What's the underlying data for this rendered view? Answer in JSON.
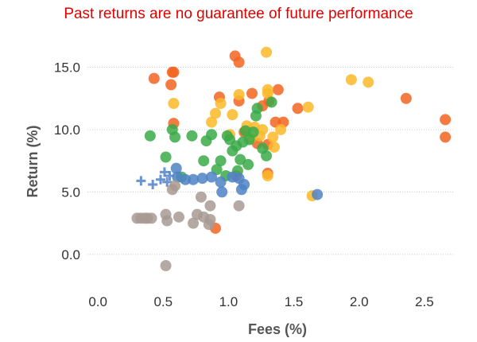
{
  "chart_data": {
    "type": "scatter",
    "title": "Past returns are no guarantee of future performance",
    "title_color": "#e00000",
    "xlabel": "Fees (%)",
    "ylabel": "Return (%)",
    "xlim": [
      -0.08,
      2.72
    ],
    "ylim": [
      -1.6,
      17.2
    ],
    "x_ticks": [
      "0.0",
      "0.5",
      "1.0",
      "1.5",
      "2.0",
      "2.5"
    ],
    "x_tick_values": [
      0.0,
      0.5,
      1.0,
      1.5,
      2.0,
      2.5
    ],
    "y_ticks": [
      "0.0",
      "5.0",
      "10.0",
      "15.0"
    ],
    "y_tick_values": [
      0.0,
      5.0,
      10.0,
      15.0
    ],
    "grid": "horizontal dotted",
    "legend": "none",
    "series": [
      {
        "color": "#f26522",
        "marker": "circle",
        "points": [
          [
            0.43,
            14.1
          ],
          [
            0.58,
            14.6
          ],
          [
            0.57,
            14.6
          ],
          [
            0.56,
            13.6
          ],
          [
            0.58,
            10.5
          ],
          [
            0.93,
            12.6
          ],
          [
            1.05,
            15.9
          ],
          [
            1.08,
            15.4
          ],
          [
            1.12,
            9.8
          ],
          [
            1.08,
            12.3
          ],
          [
            1.18,
            12.9
          ],
          [
            1.26,
            11.9
          ],
          [
            1.31,
            12.3
          ],
          [
            1.38,
            13.2
          ],
          [
            1.36,
            10.6
          ],
          [
            1.42,
            10.6
          ],
          [
            1.53,
            11.7
          ],
          [
            1.06,
            6.3
          ],
          [
            1.3,
            6.5
          ],
          [
            0.9,
            2.1
          ],
          [
            2.36,
            12.5
          ],
          [
            2.66,
            10.8
          ],
          [
            2.66,
            9.4
          ],
          [
            1.22,
            8.9
          ],
          [
            1.3,
            8.8
          ]
        ]
      },
      {
        "color": "#fbb829",
        "marker": "circle",
        "points": [
          [
            0.58,
            12.1
          ],
          [
            0.87,
            10.6
          ],
          [
            0.9,
            11.3
          ],
          [
            0.94,
            12.1
          ],
          [
            1.03,
            11.2
          ],
          [
            1.08,
            12.8
          ],
          [
            1.14,
            10.3
          ],
          [
            1.17,
            9.3
          ],
          [
            1.2,
            10.2
          ],
          [
            1.24,
            9.5
          ],
          [
            1.26,
            10.0
          ],
          [
            1.3,
            12.9
          ],
          [
            1.3,
            13.2
          ],
          [
            1.29,
            16.2
          ],
          [
            1.34,
            9.4
          ],
          [
            1.35,
            8.6
          ],
          [
            1.4,
            10.0
          ],
          [
            1.61,
            11.8
          ],
          [
            1.64,
            4.7
          ],
          [
            1.94,
            14.0
          ],
          [
            2.07,
            13.8
          ],
          [
            1.3,
            6.3
          ],
          [
            1.01,
            9.6
          ]
        ]
      },
      {
        "color": "#3aaa48",
        "marker": "circle",
        "points": [
          [
            0.4,
            9.5
          ],
          [
            0.52,
            7.8
          ],
          [
            0.57,
            10.0
          ],
          [
            0.59,
            9.4
          ],
          [
            0.64,
            6.2
          ],
          [
            0.72,
            9.5
          ],
          [
            0.81,
            7.5
          ],
          [
            0.83,
            9.1
          ],
          [
            0.87,
            9.6
          ],
          [
            0.91,
            6.8
          ],
          [
            0.94,
            7.5
          ],
          [
            0.99,
            9.5
          ],
          [
            1.01,
            9.2
          ],
          [
            1.03,
            8.3
          ],
          [
            1.06,
            8.7
          ],
          [
            1.09,
            7.6
          ],
          [
            1.11,
            9.0
          ],
          [
            1.13,
            9.9
          ],
          [
            1.16,
            9.2
          ],
          [
            1.19,
            9.8
          ],
          [
            1.21,
            11.1
          ],
          [
            1.22,
            11.7
          ],
          [
            1.26,
            8.5
          ],
          [
            1.29,
            7.9
          ],
          [
            1.33,
            12.2
          ],
          [
            1.07,
            6.7
          ],
          [
            1.15,
            7.2
          ],
          [
            0.98,
            6.3
          ]
        ]
      },
      {
        "color": "#4f82c7",
        "marker": "circle",
        "points": [
          [
            0.6,
            6.9
          ],
          [
            0.61,
            6.2
          ],
          [
            0.67,
            6.0
          ],
          [
            0.73,
            6.0
          ],
          [
            0.8,
            6.1
          ],
          [
            0.87,
            6.2
          ],
          [
            0.94,
            5.8
          ],
          [
            0.95,
            5.0
          ],
          [
            1.03,
            6.2
          ],
          [
            1.08,
            6.1
          ],
          [
            1.1,
            5.2
          ],
          [
            1.12,
            5.6
          ],
          [
            1.68,
            4.8
          ]
        ]
      },
      {
        "color": "#4f82c7",
        "marker": "plus",
        "points": [
          [
            0.33,
            5.9
          ],
          [
            0.42,
            5.6
          ],
          [
            0.48,
            6.0
          ],
          [
            0.51,
            6.6
          ],
          [
            0.53,
            5.8
          ],
          [
            0.55,
            6.3
          ]
        ]
      },
      {
        "color": "#a89a93",
        "marker": "circle",
        "points": [
          [
            0.3,
            2.9
          ],
          [
            0.33,
            2.9
          ],
          [
            0.36,
            2.9
          ],
          [
            0.38,
            2.9
          ],
          [
            0.41,
            2.9
          ],
          [
            0.52,
            3.2
          ],
          [
            0.53,
            2.7
          ],
          [
            0.57,
            5.2
          ],
          [
            0.59,
            5.5
          ],
          [
            0.62,
            3.0
          ],
          [
            0.73,
            2.5
          ],
          [
            0.76,
            3.2
          ],
          [
            0.79,
            4.6
          ],
          [
            0.81,
            3.0
          ],
          [
            0.85,
            2.4
          ],
          [
            0.86,
            3.9
          ],
          [
            0.86,
            2.8
          ],
          [
            1.08,
            3.9
          ],
          [
            0.52,
            -0.9
          ]
        ]
      }
    ]
  }
}
